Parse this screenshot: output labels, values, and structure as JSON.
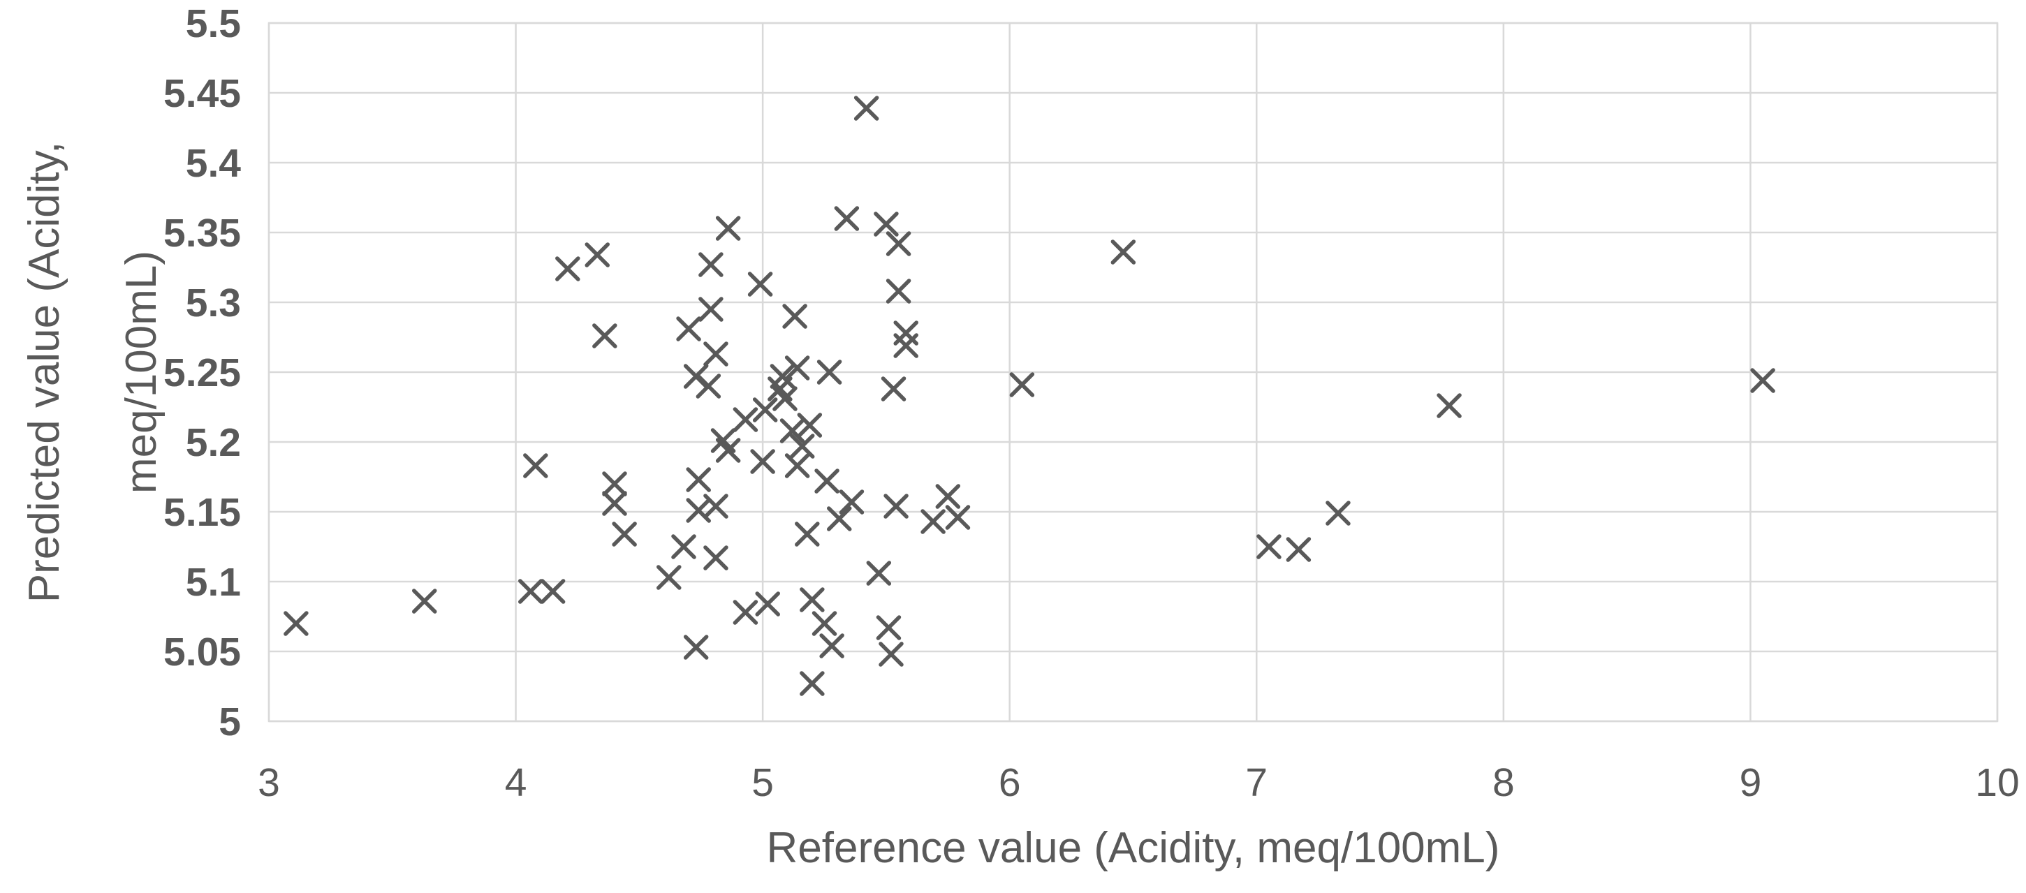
{
  "chart_data": {
    "type": "scatter",
    "title": "",
    "xlabel": "Reference value (Acidity, meq/100mL)",
    "ylabel": "Predicted value (Acidity, meq/100mL)",
    "ylabel_line1": "Predicted value (Acidity,",
    "ylabel_line2": "meq/100mL)",
    "xlim": [
      3,
      10
    ],
    "ylim": [
      5.0,
      5.5
    ],
    "x_ticks": [
      3,
      4,
      5,
      6,
      7,
      8,
      9,
      10
    ],
    "x_tick_labels": [
      "3",
      "4",
      "5",
      "6",
      "7",
      "8",
      "9",
      "10"
    ],
    "y_ticks": [
      5.0,
      5.05,
      5.1,
      5.15,
      5.2,
      5.25,
      5.3,
      5.35,
      5.4,
      5.45,
      5.5
    ],
    "y_tick_labels": [
      "5",
      "5.05",
      "5.1",
      "5.15",
      "5.2",
      "5.25",
      "5.3",
      "5.35",
      "5.4",
      "5.45",
      "5.5"
    ],
    "grid": true,
    "legend": "none",
    "marker": "x",
    "marker_color": "#595959",
    "grid_color": "#d9d9d9",
    "tick_text_color": "#595959",
    "title_text_color": "#595959",
    "background_color": "#ffffff",
    "points": [
      [
        3.11,
        5.07
      ],
      [
        3.63,
        5.086
      ],
      [
        4.06,
        5.093
      ],
      [
        4.15,
        5.093
      ],
      [
        4.08,
        5.183
      ],
      [
        4.21,
        5.324
      ],
      [
        4.33,
        5.334
      ],
      [
        4.36,
        5.276
      ],
      [
        4.86,
        5.353
      ],
      [
        4.79,
        5.327
      ],
      [
        4.99,
        5.313
      ],
      [
        4.79,
        5.295
      ],
      [
        4.7,
        5.281
      ],
      [
        4.81,
        5.263
      ],
      [
        4.73,
        5.247
      ],
      [
        4.78,
        5.24
      ],
      [
        4.84,
        5.201
      ],
      [
        4.86,
        5.194
      ],
      [
        4.93,
        5.216
      ],
      [
        5.01,
        5.223
      ],
      [
        5.0,
        5.186
      ],
      [
        4.74,
        5.173
      ],
      [
        4.4,
        5.17
      ],
      [
        4.4,
        5.156
      ],
      [
        4.81,
        5.154
      ],
      [
        4.74,
        5.151
      ],
      [
        4.44,
        5.134
      ],
      [
        4.68,
        5.125
      ],
      [
        4.81,
        5.117
      ],
      [
        4.62,
        5.103
      ],
      [
        4.93,
        5.078
      ],
      [
        5.02,
        5.084
      ],
      [
        4.73,
        5.053
      ],
      [
        5.42,
        5.439
      ],
      [
        5.34,
        5.36
      ],
      [
        5.5,
        5.356
      ],
      [
        5.55,
        5.342
      ],
      [
        5.55,
        5.308
      ],
      [
        5.13,
        5.29
      ],
      [
        5.58,
        5.278
      ],
      [
        5.58,
        5.269
      ],
      [
        5.14,
        5.253
      ],
      [
        5.27,
        5.25
      ],
      [
        5.08,
        5.247
      ],
      [
        5.07,
        5.238
      ],
      [
        5.09,
        5.231
      ],
      [
        5.53,
        5.238
      ],
      [
        5.12,
        5.208
      ],
      [
        5.19,
        5.212
      ],
      [
        5.16,
        5.197
      ],
      [
        5.14,
        5.183
      ],
      [
        5.26,
        5.172
      ],
      [
        5.36,
        5.157
      ],
      [
        5.31,
        5.145
      ],
      [
        5.54,
        5.154
      ],
      [
        5.75,
        5.161
      ],
      [
        5.69,
        5.143
      ],
      [
        5.79,
        5.146
      ],
      [
        5.18,
        5.134
      ],
      [
        5.47,
        5.106
      ],
      [
        5.2,
        5.087
      ],
      [
        5.25,
        5.07
      ],
      [
        5.28,
        5.054
      ],
      [
        5.51,
        5.067
      ],
      [
        5.52,
        5.048
      ],
      [
        5.2,
        5.027
      ],
      [
        6.05,
        5.241
      ],
      [
        6.46,
        5.336
      ],
      [
        7.05,
        5.125
      ],
      [
        7.17,
        5.123
      ],
      [
        7.33,
        5.149
      ],
      [
        7.78,
        5.226
      ],
      [
        9.05,
        5.244
      ]
    ]
  }
}
